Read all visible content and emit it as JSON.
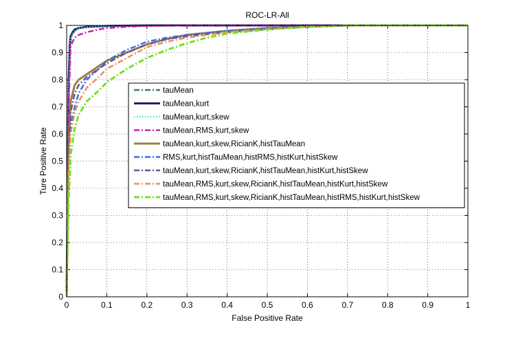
{
  "chart_data": {
    "type": "line",
    "title": "ROC-LR-All",
    "xlabel": "False Positive Rate",
    "ylabel": "Ture Positive Rate",
    "xlim": [
      0,
      1
    ],
    "ylim": [
      0,
      1
    ],
    "xticks": [
      "0",
      "0.1",
      "0.2",
      "0.3",
      "0.4",
      "0.5",
      "0.6",
      "0.7",
      "0.8",
      "0.9",
      "1"
    ],
    "yticks": [
      "0",
      "0.1",
      "0.2",
      "0.3",
      "0.4",
      "0.5",
      "0.6",
      "0.7",
      "0.8",
      "0.9",
      "1"
    ],
    "grid": true,
    "legend_position": "center-right",
    "series": [
      {
        "name": "tauMean",
        "color": "#3d7a66",
        "dash": "dashdot",
        "width": 2.5,
        "x": [
          0,
          0.002,
          0.005,
          0.008,
          0.01,
          0.015,
          0.02,
          0.03,
          0.05,
          0.1,
          0.2,
          1
        ],
        "y": [
          0,
          0.3,
          0.75,
          0.9,
          0.95,
          0.97,
          0.98,
          0.99,
          0.995,
          0.998,
          1,
          1
        ]
      },
      {
        "name": "tauMean,kurt",
        "color": "#2b1a6b",
        "dash": "solid",
        "width": 3,
        "x": [
          0,
          0.002,
          0.005,
          0.008,
          0.01,
          0.015,
          0.02,
          0.03,
          0.05,
          0.1,
          0.2,
          1
        ],
        "y": [
          0,
          0.35,
          0.8,
          0.93,
          0.96,
          0.975,
          0.985,
          0.99,
          0.995,
          0.998,
          1,
          1
        ]
      },
      {
        "name": "tauMean,kurt,skew",
        "color": "#33e0c8",
        "dash": "dotted",
        "width": 2,
        "x": [
          0,
          0.002,
          0.005,
          0.008,
          0.01,
          0.015,
          0.02,
          0.03,
          0.05,
          0.1,
          0.2,
          1
        ],
        "y": [
          0,
          0.32,
          0.77,
          0.91,
          0.955,
          0.97,
          0.98,
          0.99,
          0.995,
          0.998,
          1,
          1
        ]
      },
      {
        "name": "tauMean,RMS,kurt,skew",
        "color": "#cc1fae",
        "dash": "dashdot",
        "width": 2.5,
        "x": [
          0,
          0.002,
          0.005,
          0.01,
          0.015,
          0.02,
          0.03,
          0.05,
          0.08,
          0.1,
          0.15,
          0.2,
          0.3,
          1
        ],
        "y": [
          0,
          0.3,
          0.7,
          0.92,
          0.94,
          0.955,
          0.965,
          0.975,
          0.985,
          0.99,
          0.995,
          0.998,
          1,
          1
        ]
      },
      {
        "name": "tauMean,kurt,skew,RicianK,histTauMean",
        "color": "#9a8040",
        "dash": "solid",
        "width": 3,
        "x": [
          0,
          0.002,
          0.005,
          0.01,
          0.02,
          0.03,
          0.05,
          0.08,
          0.1,
          0.15,
          0.2,
          0.25,
          0.3,
          0.4,
          0.5,
          0.6,
          0.7,
          1
        ],
        "y": [
          0,
          0.3,
          0.55,
          0.72,
          0.78,
          0.8,
          0.82,
          0.85,
          0.87,
          0.9,
          0.93,
          0.95,
          0.965,
          0.98,
          0.99,
          0.995,
          1,
          1
        ]
      },
      {
        "name": "RMS,kurt,histTauMean,histRMS,histKurt,histSkew",
        "color": "#3a6fd8",
        "dash": "dashdot",
        "width": 2.5,
        "x": [
          0,
          0.002,
          0.005,
          0.01,
          0.02,
          0.03,
          0.05,
          0.08,
          0.1,
          0.15,
          0.2,
          0.25,
          0.3,
          0.4,
          0.5,
          0.6,
          0.7,
          1
        ],
        "y": [
          0,
          0.25,
          0.5,
          0.63,
          0.7,
          0.75,
          0.8,
          0.84,
          0.87,
          0.91,
          0.94,
          0.955,
          0.965,
          0.98,
          0.99,
          0.995,
          1,
          1
        ]
      },
      {
        "name": "tauMean,kurt,skew,RicianK,histTauMean,histKurt,histSkew",
        "color": "#6a4f9a",
        "dash": "dashdot",
        "width": 2.5,
        "x": [
          0,
          0.002,
          0.005,
          0.01,
          0.02,
          0.03,
          0.05,
          0.08,
          0.1,
          0.15,
          0.2,
          0.25,
          0.3,
          0.4,
          0.5,
          0.6,
          0.7,
          1
        ],
        "y": [
          0,
          0.28,
          0.52,
          0.68,
          0.75,
          0.78,
          0.81,
          0.84,
          0.86,
          0.9,
          0.93,
          0.95,
          0.96,
          0.975,
          0.985,
          0.995,
          1,
          1
        ]
      },
      {
        "name": "tauMean,RMS,kurt,skew,RicianK,histTauMean,histKurt,histSkew",
        "color": "#e8925a",
        "dash": "dashdot",
        "width": 2.5,
        "x": [
          0,
          0.002,
          0.005,
          0.01,
          0.02,
          0.03,
          0.05,
          0.08,
          0.1,
          0.15,
          0.2,
          0.25,
          0.3,
          0.4,
          0.5,
          0.6,
          0.7,
          1
        ],
        "y": [
          0,
          0.22,
          0.45,
          0.6,
          0.68,
          0.72,
          0.77,
          0.81,
          0.84,
          0.88,
          0.92,
          0.94,
          0.955,
          0.975,
          0.985,
          0.995,
          1,
          1
        ]
      },
      {
        "name": "tauMean,RMS,kurt,skew,RicianK,histTauMean,histRMS,histKurt,histSkew",
        "color": "#77e022",
        "dash": "dashdot",
        "width": 3,
        "x": [
          0,
          0.002,
          0.005,
          0.01,
          0.02,
          0.03,
          0.05,
          0.08,
          0.1,
          0.15,
          0.2,
          0.25,
          0.3,
          0.35,
          0.4,
          0.5,
          0.6,
          0.7,
          1
        ],
        "y": [
          0,
          0.15,
          0.35,
          0.52,
          0.62,
          0.67,
          0.72,
          0.76,
          0.79,
          0.84,
          0.88,
          0.91,
          0.935,
          0.955,
          0.97,
          0.985,
          0.995,
          1,
          1
        ]
      }
    ]
  }
}
